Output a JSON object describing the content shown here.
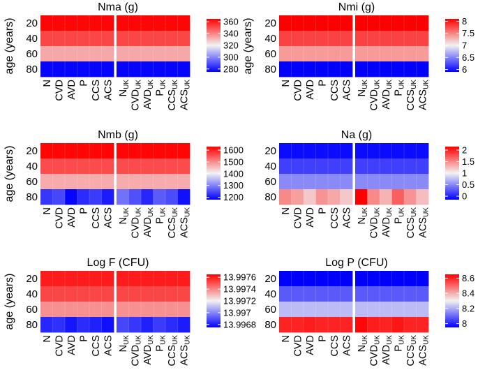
{
  "colors": {
    "low": "#0000ff",
    "mid": "#f2f2f2",
    "high": "#ff0000",
    "separator": "#ffffff"
  },
  "chart_data": [
    {
      "type": "heatmap",
      "title": "Nma (g)",
      "ylabel": "age (years)",
      "y_categories": [
        "20",
        "40",
        "60",
        "80"
      ],
      "x_categories": [
        {
          "main": "N",
          "sub": ""
        },
        {
          "main": "CVD",
          "sub": ""
        },
        {
          "main": "AVD",
          "sub": ""
        },
        {
          "main": "P",
          "sub": ""
        },
        {
          "main": "CCS",
          "sub": ""
        },
        {
          "main": "ACS",
          "sub": ""
        },
        {
          "main": "N",
          "sub": "UK"
        },
        {
          "main": "CVD",
          "sub": "UK"
        },
        {
          "main": "AVD",
          "sub": "UK"
        },
        {
          "main": "P",
          "sub": "UK"
        },
        {
          "main": "CCS",
          "sub": "UK"
        },
        {
          "main": "ACS",
          "sub": "UK"
        }
      ],
      "group_break_after": 6,
      "colorbar": {
        "range": [
          275,
          365
        ],
        "ticks": [
          "360",
          "340",
          "320",
          "300",
          "280"
        ]
      },
      "values": [
        [
          364,
          364,
          364,
          364,
          364,
          364,
          364,
          364,
          364,
          364,
          364,
          364
        ],
        [
          352,
          352,
          352,
          352,
          352,
          352,
          352,
          352,
          352,
          352,
          352,
          352
        ],
        [
          334,
          334,
          334,
          334,
          334,
          334,
          334,
          334,
          334,
          334,
          334,
          334
        ],
        [
          276,
          276,
          276,
          276,
          276,
          276,
          276,
          276,
          276,
          276,
          276,
          276
        ]
      ]
    },
    {
      "type": "heatmap",
      "title": "Nmi (g)",
      "ylabel": "age (years)",
      "y_categories": [
        "20",
        "40",
        "60",
        "80"
      ],
      "x_categories": [
        {
          "main": "N",
          "sub": ""
        },
        {
          "main": "CVD",
          "sub": ""
        },
        {
          "main": "AVD",
          "sub": ""
        },
        {
          "main": "P",
          "sub": ""
        },
        {
          "main": "CCS",
          "sub": ""
        },
        {
          "main": "ACS",
          "sub": ""
        },
        {
          "main": "N",
          "sub": "UK"
        },
        {
          "main": "CVD",
          "sub": "UK"
        },
        {
          "main": "AVD",
          "sub": "UK"
        },
        {
          "main": "P",
          "sub": "UK"
        },
        {
          "main": "CCS",
          "sub": "UK"
        },
        {
          "main": "ACS",
          "sub": "UK"
        }
      ],
      "group_break_after": 6,
      "colorbar": {
        "range": [
          5.9,
          8.1
        ],
        "ticks": [
          "8",
          "7.5",
          "7",
          "6.5",
          "6"
        ]
      },
      "values": [
        [
          8.1,
          8.1,
          8.1,
          8.1,
          8.1,
          8.1,
          8.1,
          8.1,
          8.1,
          8.1,
          8.1,
          8.1
        ],
        [
          7.8,
          7.8,
          7.8,
          7.8,
          7.8,
          7.8,
          7.8,
          7.8,
          7.8,
          7.8,
          7.8,
          7.8
        ],
        [
          7.4,
          7.4,
          7.4,
          7.4,
          7.4,
          7.4,
          7.4,
          7.4,
          7.4,
          7.4,
          7.4,
          7.4
        ],
        [
          5.9,
          5.9,
          5.9,
          5.9,
          5.9,
          5.9,
          5.9,
          5.9,
          5.9,
          5.9,
          5.9,
          5.9
        ]
      ]
    },
    {
      "type": "heatmap",
      "title": "Nmb (g)",
      "ylabel": "age (years)",
      "y_categories": [
        "20",
        "40",
        "60",
        "80"
      ],
      "x_categories": [
        {
          "main": "N",
          "sub": ""
        },
        {
          "main": "CVD",
          "sub": ""
        },
        {
          "main": "AVD",
          "sub": ""
        },
        {
          "main": "P",
          "sub": ""
        },
        {
          "main": "CCS",
          "sub": ""
        },
        {
          "main": "ACS",
          "sub": ""
        },
        {
          "main": "N",
          "sub": "UK"
        },
        {
          "main": "CVD",
          "sub": "UK"
        },
        {
          "main": "AVD",
          "sub": "UK"
        },
        {
          "main": "P",
          "sub": "UK"
        },
        {
          "main": "CCS",
          "sub": "UK"
        },
        {
          "main": "ACS",
          "sub": "UK"
        }
      ],
      "group_break_after": 6,
      "colorbar": {
        "range": [
          1180,
          1630
        ],
        "ticks": [
          "1600",
          "1500",
          "1400",
          "1300",
          "1200"
        ]
      },
      "values": [
        [
          1625,
          1625,
          1625,
          1625,
          1625,
          1625,
          1625,
          1625,
          1625,
          1625,
          1625,
          1625
        ],
        [
          1560,
          1560,
          1560,
          1560,
          1560,
          1560,
          1560,
          1560,
          1560,
          1560,
          1560,
          1560
        ],
        [
          1470,
          1470,
          1470,
          1470,
          1470,
          1470,
          1470,
          1470,
          1470,
          1470,
          1470,
          1470
        ],
        [
          1230,
          1245,
          1185,
          1220,
          1235,
          1205,
          1285,
          1255,
          1215,
          1265,
          1250,
          1195
        ]
      ]
    },
    {
      "type": "heatmap",
      "title": "Na (g)",
      "ylabel": "",
      "y_categories": [
        "20",
        "40",
        "60",
        "80"
      ],
      "x_categories": [
        {
          "main": "N",
          "sub": ""
        },
        {
          "main": "CVD",
          "sub": ""
        },
        {
          "main": "AVD",
          "sub": ""
        },
        {
          "main": "P",
          "sub": ""
        },
        {
          "main": "CCS",
          "sub": ""
        },
        {
          "main": "ACS",
          "sub": ""
        },
        {
          "main": "N",
          "sub": "UK"
        },
        {
          "main": "CVD",
          "sub": "UK"
        },
        {
          "main": "AVD",
          "sub": "UK"
        },
        {
          "main": "P",
          "sub": "UK"
        },
        {
          "main": "CCS",
          "sub": "UK"
        },
        {
          "main": "ACS",
          "sub": "UK"
        }
      ],
      "group_break_after": 6,
      "colorbar": {
        "range": [
          -0.15,
          2.15
        ],
        "ticks": [
          "2",
          "1.5",
          "1",
          "0.5",
          "0"
        ]
      },
      "values": [
        [
          -0.1,
          -0.1,
          -0.1,
          -0.1,
          -0.1,
          -0.1,
          -0.1,
          -0.1,
          -0.1,
          -0.1,
          -0.1,
          -0.1
        ],
        [
          0.15,
          0.15,
          0.15,
          0.15,
          0.15,
          0.15,
          0.15,
          0.15,
          0.15,
          0.15,
          0.15,
          0.15
        ],
        [
          0.5,
          0.5,
          0.5,
          0.5,
          0.5,
          0.5,
          0.5,
          0.5,
          0.5,
          0.5,
          0.5,
          0.5
        ],
        [
          1.5,
          1.4,
          1.2,
          1.45,
          1.35,
          1.2,
          2.15,
          1.5,
          1.3,
          1.7,
          1.45,
          1.25
        ]
      ]
    },
    {
      "type": "heatmap",
      "title": "Log F (CFU)",
      "ylabel": "age (years)",
      "y_categories": [
        "20",
        "40",
        "60",
        "80"
      ],
      "x_categories": [
        {
          "main": "N",
          "sub": ""
        },
        {
          "main": "CVD",
          "sub": ""
        },
        {
          "main": "AVD",
          "sub": ""
        },
        {
          "main": "P",
          "sub": ""
        },
        {
          "main": "CCS",
          "sub": ""
        },
        {
          "main": "ACS",
          "sub": ""
        },
        {
          "main": "N",
          "sub": "UK"
        },
        {
          "main": "CVD",
          "sub": "UK"
        },
        {
          "main": "AVD",
          "sub": "UK"
        },
        {
          "main": "P",
          "sub": "UK"
        },
        {
          "main": "CCS",
          "sub": "UK"
        },
        {
          "main": "ACS",
          "sub": "UK"
        }
      ],
      "group_break_after": 6,
      "colorbar": {
        "range": [
          13.99675,
          13.99765
        ],
        "ticks": [
          "13.9976",
          "13.9974",
          "13.9972",
          "13.997",
          "13.9968"
        ]
      },
      "values": [
        [
          13.9976,
          13.9976,
          13.9976,
          13.9976,
          13.9976,
          13.9976,
          13.9976,
          13.9976,
          13.9976,
          13.9976,
          13.9976,
          13.9976
        ],
        [
          13.99752,
          13.99752,
          13.99752,
          13.99752,
          13.99752,
          13.99752,
          13.99752,
          13.99752,
          13.99752,
          13.99752,
          13.99752,
          13.99752
        ],
        [
          13.99738,
          13.99738,
          13.99738,
          13.99738,
          13.99738,
          13.99738,
          13.99738,
          13.99738,
          13.99738,
          13.99738,
          13.99738,
          13.99738
        ],
        [
          13.99682,
          13.99684,
          13.99679,
          13.99683,
          13.99681,
          13.99678,
          13.99688,
          13.99685,
          13.99681,
          13.99686,
          13.99683,
          13.9968
        ]
      ]
    },
    {
      "type": "heatmap",
      "title": "Log P (CFU)",
      "ylabel": "",
      "y_categories": [
        "20",
        "40",
        "60",
        "80"
      ],
      "x_categories": [
        {
          "main": "N",
          "sub": ""
        },
        {
          "main": "CVD",
          "sub": ""
        },
        {
          "main": "AVD",
          "sub": ""
        },
        {
          "main": "P",
          "sub": ""
        },
        {
          "main": "CCS",
          "sub": ""
        },
        {
          "main": "ACS",
          "sub": ""
        },
        {
          "main": "N",
          "sub": "UK"
        },
        {
          "main": "CVD",
          "sub": "UK"
        },
        {
          "main": "AVD",
          "sub": "UK"
        },
        {
          "main": "P",
          "sub": "UK"
        },
        {
          "main": "CCS",
          "sub": "UK"
        },
        {
          "main": "ACS",
          "sub": "UK"
        }
      ],
      "group_break_after": 6,
      "colorbar": {
        "range": [
          7.95,
          8.65
        ],
        "ticks": [
          "8.6",
          "8.4",
          "8.2",
          "8"
        ]
      },
      "values": [
        [
          7.95,
          7.95,
          7.95,
          7.95,
          7.95,
          7.95,
          7.95,
          7.95,
          7.95,
          7.95,
          7.95,
          7.95
        ],
        [
          8.08,
          8.08,
          8.08,
          8.08,
          8.08,
          8.08,
          8.08,
          8.08,
          8.08,
          8.08,
          8.08,
          8.08
        ],
        [
          8.22,
          8.22,
          8.22,
          8.22,
          8.22,
          8.22,
          8.22,
          8.22,
          8.22,
          8.22,
          8.22,
          8.22
        ],
        [
          8.6,
          8.6,
          8.61,
          8.6,
          8.6,
          8.6,
          8.64,
          8.61,
          8.6,
          8.62,
          8.6,
          8.6
        ]
      ]
    }
  ]
}
